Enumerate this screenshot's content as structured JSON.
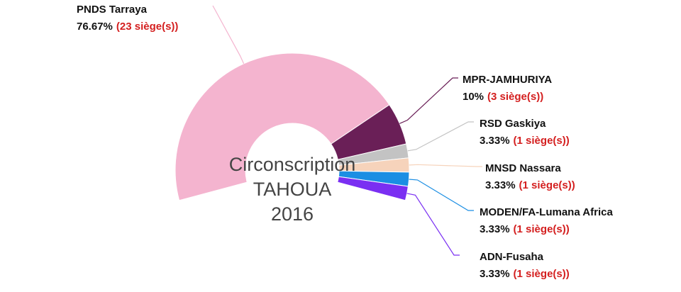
{
  "chart_data": {
    "type": "donut",
    "title_lines": [
      "Circonscription",
      "TAHOUA",
      "2016"
    ],
    "categories": [
      "PNDS Tarraya",
      "MPR-JAMHURIYA",
      "RSD Gaskiya",
      "MNSD Nassara",
      "MODEN/FA-Lumana Africa",
      "ADN-Fusaha"
    ],
    "values": [
      76.67,
      10,
      3.33,
      3.33,
      3.33,
      3.33
    ],
    "value_labels": [
      "76.67%",
      "10%",
      "3.33%",
      "3.33%",
      "3.33%",
      "3.33%"
    ],
    "seat_labels": [
      "(23 siège(s))",
      "(3 siège(s))",
      "(1 siège(s))",
      "(1 siège(s))",
      "(1 siège(s))",
      "(1 siège(s))"
    ],
    "colors": [
      "#f4b4cf",
      "#6a1f57",
      "#c3c3c3",
      "#f6d3bb",
      "#1b8ee3",
      "#7a2ff2"
    ]
  }
}
